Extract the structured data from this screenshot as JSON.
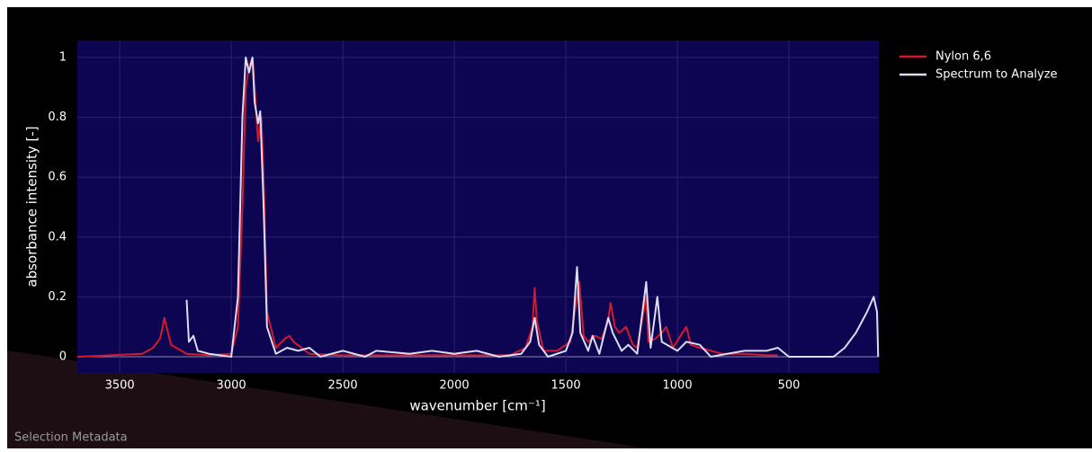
{
  "chart_data": {
    "type": "line",
    "xlabel": "wavenumber [cm⁻¹]",
    "ylabel": "absorbance intensity [-]",
    "xlim": [
      3690,
      97
    ],
    "ylim": [
      -0.054,
      1.057
    ],
    "xticks": [
      3500,
      3000,
      2500,
      2000,
      1500,
      1000,
      500
    ],
    "yticks": [
      0,
      0.2,
      0.4,
      0.6,
      0.8,
      1
    ],
    "grid": true,
    "legend": "right",
    "series": [
      {
        "name": "Nylon 6,6",
        "color": "#d4192c",
        "x": [
          3690,
          3400,
          3350,
          3320,
          3310,
          3300,
          3290,
          3270,
          3200,
          3100,
          3000,
          2970,
          2950,
          2935,
          2920,
          2905,
          2895,
          2880,
          2865,
          2855,
          2840,
          2800,
          2760,
          2740,
          2720,
          2650,
          2500,
          2000,
          1750,
          1680,
          1650,
          1640,
          1630,
          1600,
          1540,
          1480,
          1470,
          1440,
          1420,
          1400,
          1370,
          1340,
          1310,
          1300,
          1280,
          1260,
          1230,
          1200,
          1180,
          1140,
          1130,
          1100,
          1070,
          1050,
          1020,
          960,
          940,
          900,
          800,
          700,
          600,
          550
        ],
        "values": [
          0,
          0.01,
          0.03,
          0.06,
          0.09,
          0.13,
          0.1,
          0.04,
          0.01,
          0.005,
          0.01,
          0.1,
          0.5,
          0.9,
          0.97,
          1,
          0.9,
          0.72,
          0.8,
          0.6,
          0.15,
          0.03,
          0.06,
          0.07,
          0.05,
          0.01,
          0.005,
          0.005,
          0.005,
          0.03,
          0.1,
          0.23,
          0.12,
          0.02,
          0.02,
          0.05,
          0.1,
          0.25,
          0.07,
          0.05,
          0.07,
          0.06,
          0.12,
          0.18,
          0.1,
          0.08,
          0.1,
          0.04,
          0.03,
          0.2,
          0.05,
          0.06,
          0.08,
          0.1,
          0.03,
          0.1,
          0.04,
          0.03,
          0.01,
          0.01,
          0.005,
          0.005
        ]
      },
      {
        "name": "Spectrum to Analyze",
        "color": "#dcdcf0",
        "x": [
          3200,
          3190,
          3170,
          3150,
          3100,
          3050,
          3000,
          2970,
          2950,
          2935,
          2920,
          2905,
          2895,
          2880,
          2870,
          2855,
          2840,
          2800,
          2750,
          2700,
          2650,
          2600,
          2500,
          2400,
          2350,
          2200,
          2100,
          2000,
          1900,
          1800,
          1700,
          1660,
          1640,
          1620,
          1580,
          1500,
          1470,
          1450,
          1435,
          1400,
          1380,
          1350,
          1310,
          1290,
          1250,
          1220,
          1180,
          1140,
          1120,
          1090,
          1070,
          1000,
          960,
          900,
          850,
          700,
          600,
          550,
          500,
          400,
          300,
          250,
          200,
          150,
          120,
          105,
          100
        ],
        "values": [
          0.19,
          0.05,
          0.07,
          0.02,
          0.01,
          0.005,
          0,
          0.2,
          0.8,
          1,
          0.95,
          1,
          0.85,
          0.78,
          0.82,
          0.5,
          0.1,
          0.01,
          0.03,
          0.02,
          0.03,
          0,
          0.02,
          0,
          0.02,
          0.01,
          0.02,
          0.01,
          0.02,
          0,
          0.01,
          0.05,
          0.13,
          0.04,
          0,
          0.02,
          0.08,
          0.3,
          0.08,
          0.02,
          0.07,
          0.01,
          0.13,
          0.08,
          0.02,
          0.04,
          0.01,
          0.25,
          0.03,
          0.2,
          0.05,
          0.02,
          0.05,
          0.04,
          0,
          0.02,
          0.02,
          0.03,
          0,
          0,
          0,
          0.03,
          0.08,
          0.15,
          0.2,
          0.15,
          0
        ]
      }
    ]
  },
  "footer": {
    "label": "Selection Metadata"
  }
}
